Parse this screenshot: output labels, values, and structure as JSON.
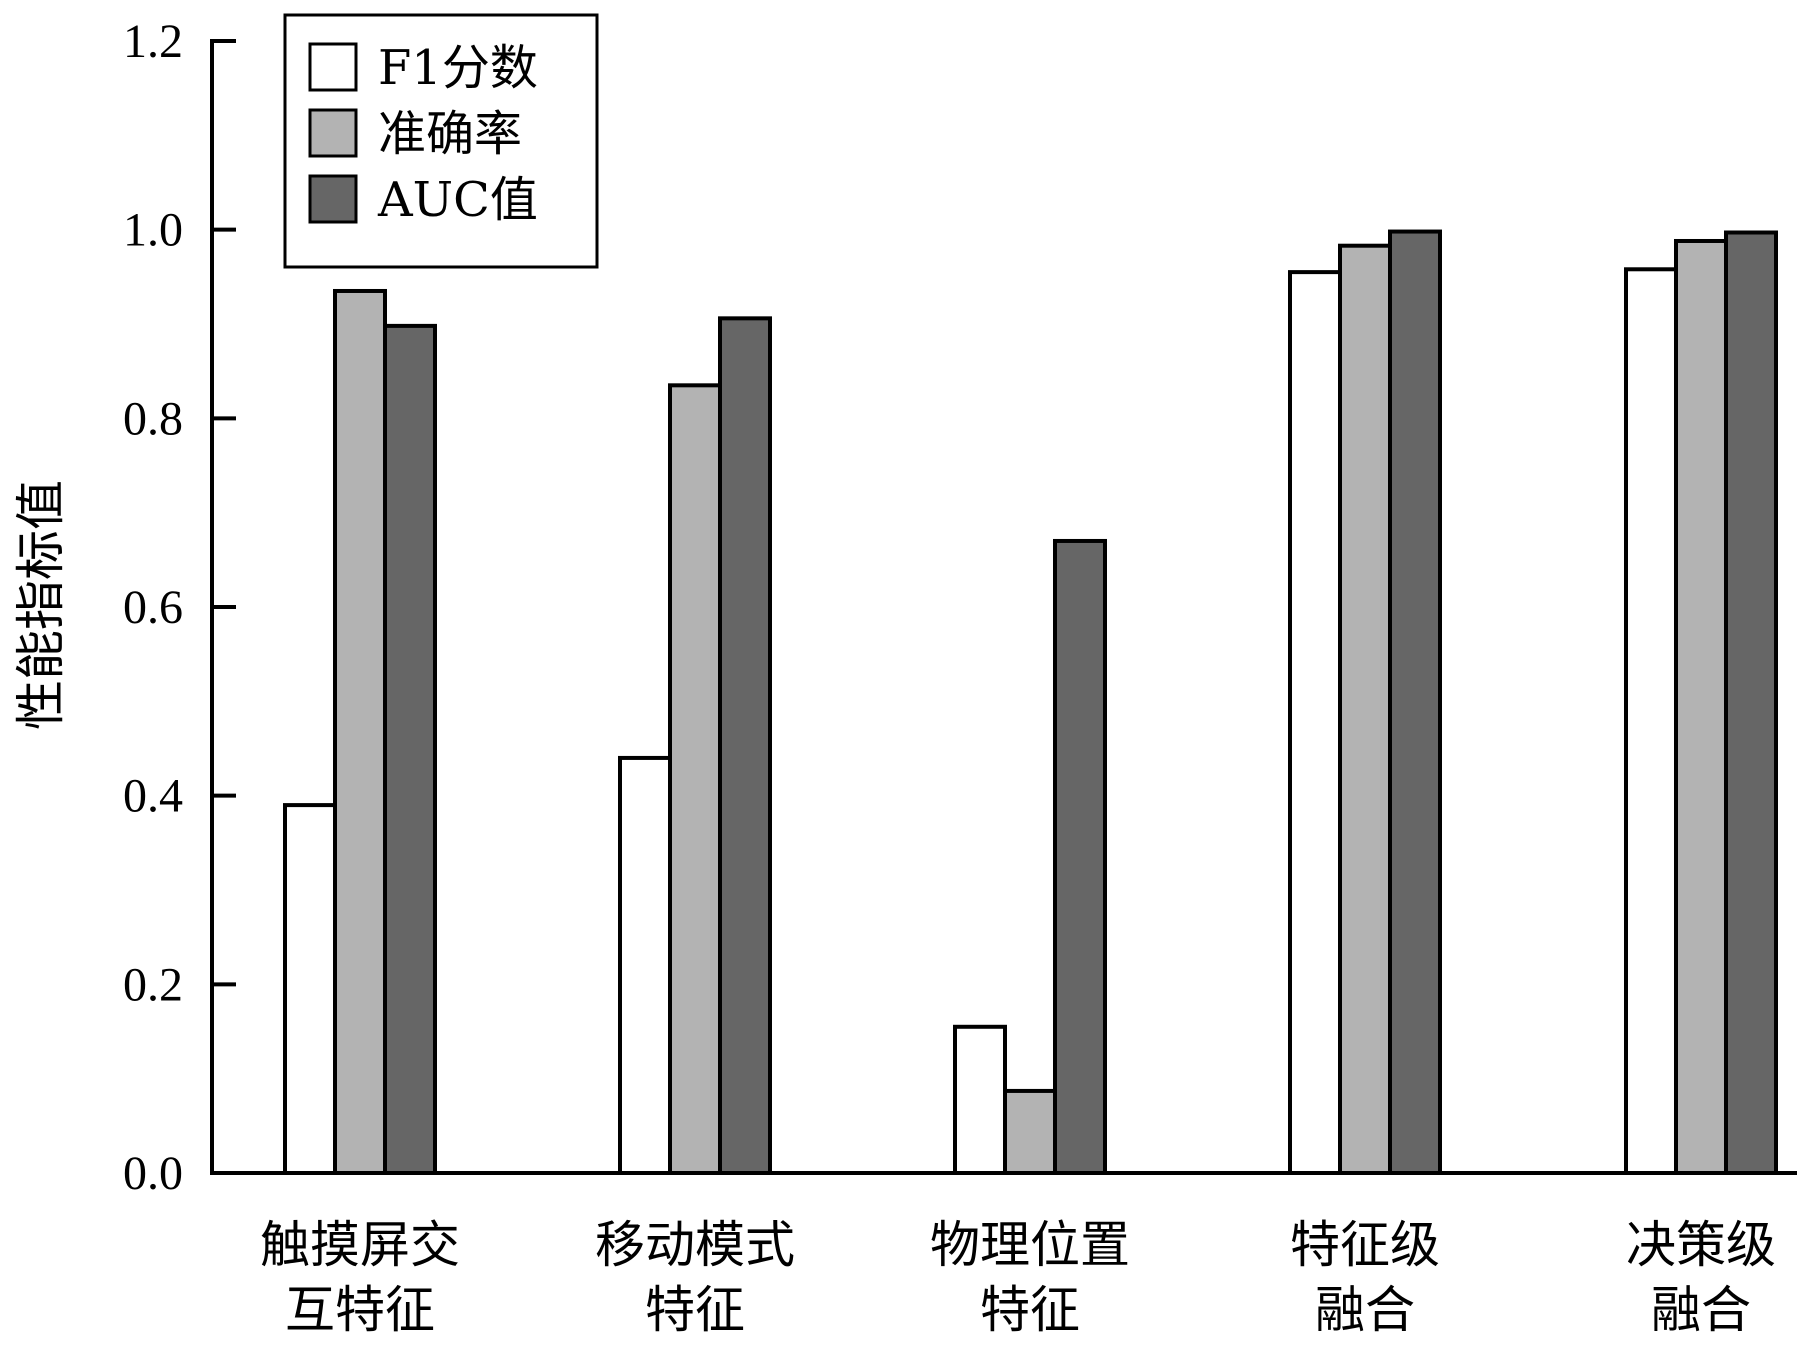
{
  "chart_data": {
    "type": "bar",
    "ylabel": "性能指标值",
    "ylim": [
      0,
      1.2
    ],
    "yticks": [
      "0.0",
      "0.2",
      "0.4",
      "0.6",
      "0.8",
      "1.0",
      "1.2"
    ],
    "categories": [
      [
        "触摸屏交",
        "互特征"
      ],
      [
        "移动模式",
        "特征"
      ],
      [
        "物理位置",
        "特征"
      ],
      [
        "特征级",
        "融合"
      ],
      [
        "决策级",
        "融合"
      ]
    ],
    "series": [
      {
        "name": "F1分数",
        "color": "#ffffff",
        "values": [
          0.39,
          0.44,
          0.155,
          0.955,
          0.958
        ]
      },
      {
        "name": "准确率",
        "color": "#b3b3b3",
        "values": [
          0.935,
          0.835,
          0.087,
          0.983,
          0.988
        ]
      },
      {
        "name": "AUC值",
        "color": "#666666",
        "values": [
          0.898,
          0.906,
          0.67,
          0.998,
          0.997
        ]
      }
    ],
    "legend_position": "top-left",
    "grid": false
  }
}
